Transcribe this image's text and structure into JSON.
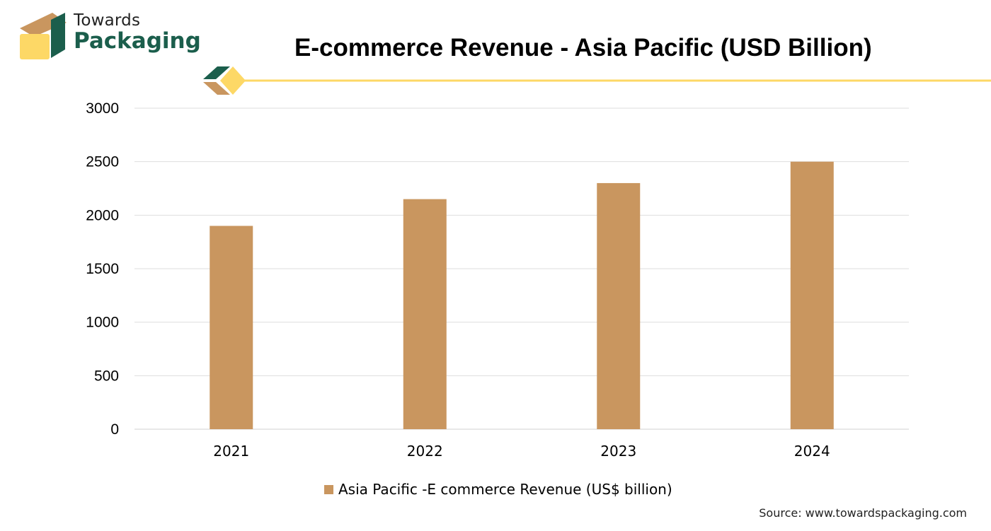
{
  "brand": {
    "name_top": "Towards",
    "name_bottom": "Packaging",
    "colors": {
      "green": "#1b5e4c",
      "tan": "#c9965f",
      "yellow": "#fdd866"
    }
  },
  "source": "Source: www.towardspackaging.com",
  "chart_data": {
    "type": "bar",
    "title": "E-commerce Revenue - Asia Pacific (USD Billion)",
    "categories": [
      "2021",
      "2022",
      "2023",
      "2024"
    ],
    "series": [
      {
        "name": "Asia Pacific -E commerce Revenue (US$ billion)",
        "values": [
          1900,
          2150,
          2300,
          2500
        ],
        "color": "#c9965f"
      }
    ],
    "ylim": [
      0,
      3000
    ],
    "yticks": [
      "0",
      "500",
      "1000",
      "1500",
      "2000",
      "2500",
      "3000"
    ],
    "xlabel": "",
    "ylabel": "",
    "grid": true,
    "legend_position": "bottom"
  }
}
